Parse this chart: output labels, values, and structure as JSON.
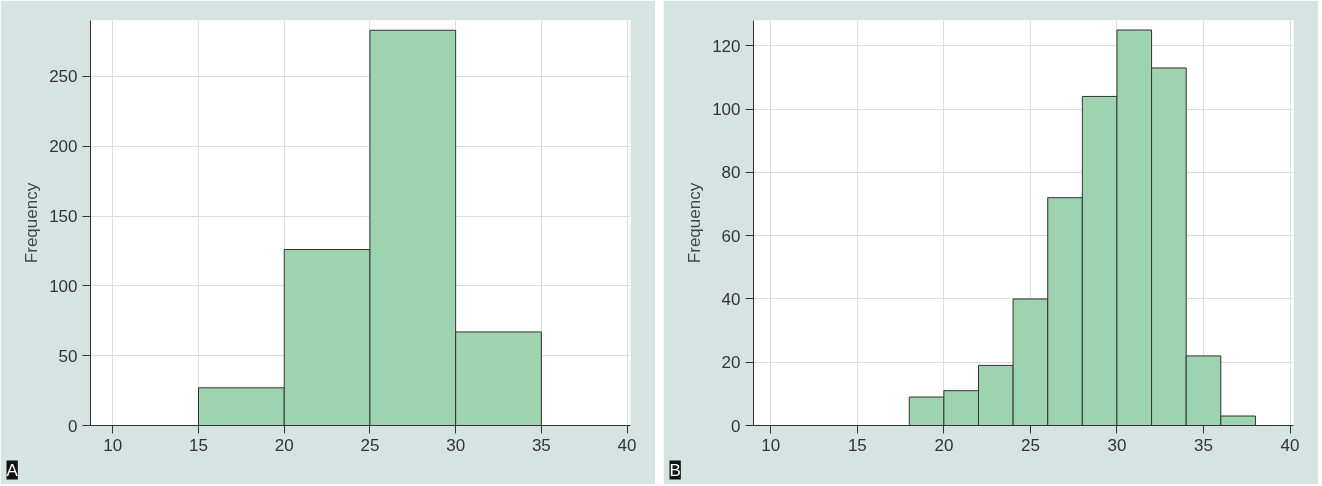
{
  "chart_data": [
    {
      "type": "histogram",
      "bins": [
        15,
        20,
        25,
        30,
        35
      ],
      "values": [
        27,
        126,
        283,
        67
      ],
      "color": "#9dd3ae",
      "ylabel": "Frequency",
      "xlim": [
        8.7,
        40.2
      ],
      "ylim": [
        0,
        290
      ],
      "xticks": [
        10,
        15,
        20,
        25,
        30,
        35,
        40
      ],
      "yticks": [
        0,
        50,
        100,
        150,
        200,
        250
      ],
      "grid": true,
      "annotations": [
        "A"
      ]
    },
    {
      "type": "histogram",
      "bins": [
        18,
        20,
        22,
        24,
        26,
        28,
        30,
        32,
        34,
        36,
        38
      ],
      "values": [
        9,
        11,
        19,
        40,
        72,
        104,
        125,
        113,
        22,
        3
      ],
      "color": "#9dd3ae",
      "ylabel": "Frequency",
      "xlim": [
        9.0,
        40.2
      ],
      "ylim": [
        0,
        128
      ],
      "xticks": [
        10,
        15,
        20,
        25,
        30,
        35,
        40
      ],
      "yticks": [
        0,
        20,
        40,
        60,
        80,
        100,
        120
      ],
      "grid": true,
      "annotations": [
        "B"
      ]
    }
  ]
}
